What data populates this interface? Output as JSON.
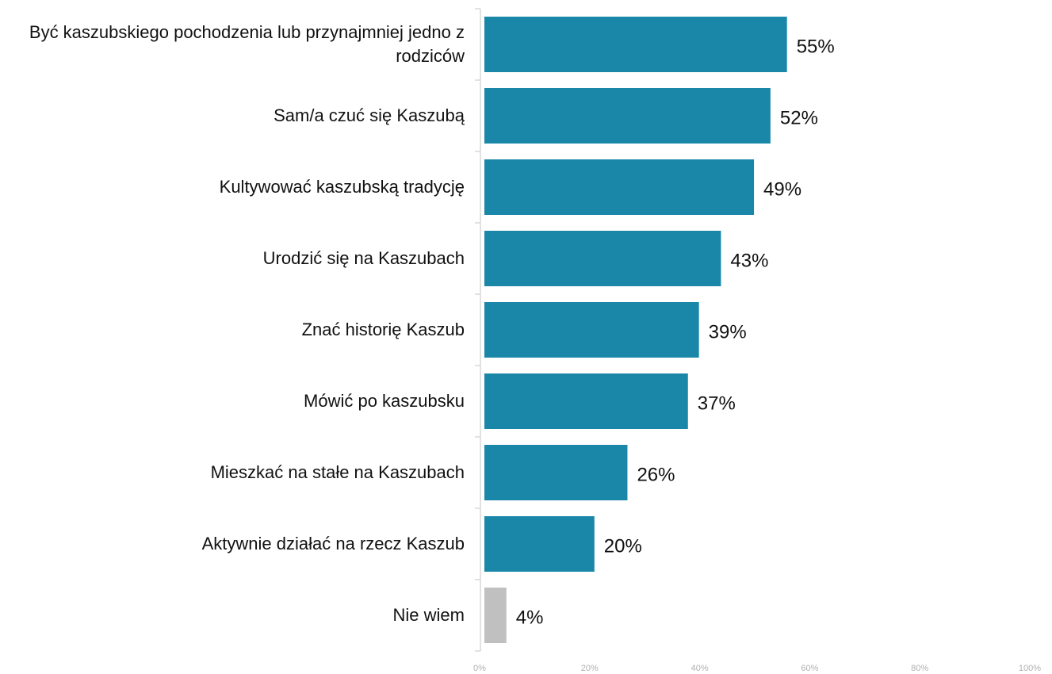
{
  "chart_data": {
    "type": "bar",
    "orientation": "horizontal",
    "categories": [
      "Być kaszubskiego pochodzenia lub przynajmniej jedno z rodziców",
      "Sam/a czuć się Kaszubą",
      "Kultywować kaszubską tradycję",
      "Urodzić się na Kaszubach",
      "Znać historię Kaszub",
      "Mówić po kaszubsku",
      "Mieszkać na stałe na Kaszubach",
      "Aktywnie działać na rzecz Kaszub",
      "Nie wiem"
    ],
    "values": [
      55,
      52,
      49,
      43,
      39,
      37,
      26,
      20,
      4
    ],
    "value_labels": [
      "55%",
      "52%",
      "49%",
      "43%",
      "39%",
      "37%",
      "26%",
      "20%",
      "4%"
    ],
    "colors": [
      "#1a87a8",
      "#1a87a8",
      "#1a87a8",
      "#1a87a8",
      "#1a87a8",
      "#1a87a8",
      "#1a87a8",
      "#1a87a8",
      "#c0c0c0"
    ],
    "xlim": [
      0,
      100
    ],
    "xticks": [
      {
        "value": 0,
        "label": "0%"
      },
      {
        "value": 20,
        "label": "20%"
      },
      {
        "value": 40,
        "label": "40%"
      },
      {
        "value": 60,
        "label": "60%"
      },
      {
        "value": 80,
        "label": "80%"
      },
      {
        "value": 100,
        "label": "100%"
      }
    ],
    "grid": false
  }
}
